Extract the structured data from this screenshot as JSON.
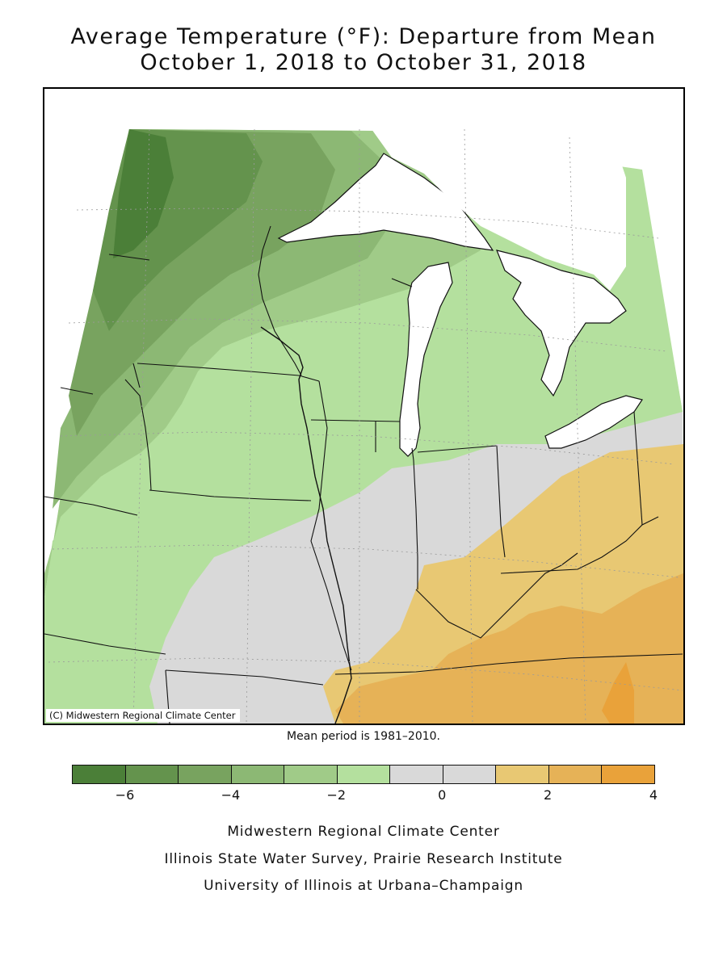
{
  "title": {
    "line1": "Average Temperature (°F): Departure from Mean",
    "line2": "October 1, 2018 to October 31, 2018"
  },
  "map": {
    "copyright": "(C) Midwestern Regional Climate Center",
    "mean_note": "Mean period is 1981–2010.",
    "regions": [
      {
        "name": "far-northwest",
        "value": -6,
        "color": "#4b7f38"
      },
      {
        "name": "northwest",
        "value": -5,
        "color": "#64934d"
      },
      {
        "name": "north-central",
        "value": -4,
        "color": "#78a35f"
      },
      {
        "name": "central",
        "value": -3,
        "color": "#8cb874"
      },
      {
        "name": "central-lower",
        "value": -2,
        "color": "#a0cb88"
      },
      {
        "name": "south-central",
        "value": -1,
        "color": "#b4e09e"
      },
      {
        "name": "illinois-indiana",
        "value": 0,
        "color": "#d9d9d9"
      },
      {
        "name": "ohio-kentucky",
        "value": 1,
        "color": "#e8c873"
      },
      {
        "name": "kentucky-south",
        "value": 2,
        "color": "#e6b257"
      },
      {
        "name": "tennessee-hotspot",
        "value": 3,
        "color": "#e9a23a"
      }
    ]
  },
  "legend": {
    "colors": [
      "#4b7f38",
      "#64934d",
      "#78a35f",
      "#8cb874",
      "#a0cb88",
      "#b4e09e",
      "#d9d9d9",
      "#d9d9d9",
      "#e8c873",
      "#e6b257",
      "#e9a23a"
    ],
    "bins": [
      -7,
      -6,
      -5,
      -4,
      -3,
      -2,
      -1,
      0,
      1,
      2,
      3,
      4
    ],
    "tick_labels": [
      "−6",
      "−4",
      "−2",
      "0",
      "2",
      "4"
    ],
    "tick_values": [
      -6,
      -4,
      -2,
      0,
      2,
      4
    ]
  },
  "footer": {
    "line1": "Midwestern Regional Climate Center",
    "line2": "Illinois State Water Survey, Prairie Research Institute",
    "line3": "University of Illinois at Urbana–Champaign"
  }
}
